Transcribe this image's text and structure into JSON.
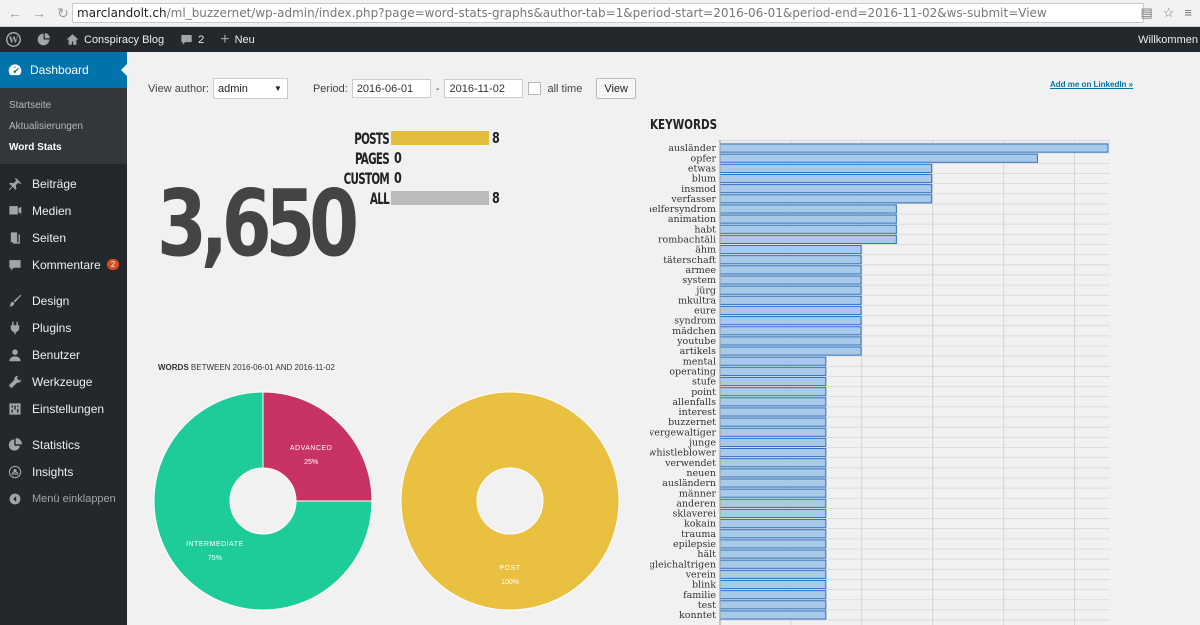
{
  "browser": {
    "url_host": "marclandolt.ch",
    "url_path": "/ml_buzzernet/wp-admin/index.php?page=word-stats-graphs&author-tab=1&period-start=2016-06-01&period-end=2016-11-02&ws-submit=View"
  },
  "adminbar": {
    "site_name": "Conspiracy Blog",
    "comments_count": "2",
    "new_label": "Neu",
    "howdy": "Willkommen"
  },
  "sidebar": {
    "dashboard": "Dashboard",
    "submenu": [
      "Startseite",
      "Aktualisierungen",
      "Word Stats"
    ],
    "items": [
      {
        "label": "Beiträge",
        "icon": "pin-icon"
      },
      {
        "label": "Medien",
        "icon": "media-icon"
      },
      {
        "label": "Seiten",
        "icon": "pages-icon"
      },
      {
        "label": "Kommentare",
        "icon": "comments-icon",
        "badge": "2"
      },
      {
        "label": "Design",
        "icon": "brush-icon"
      },
      {
        "label": "Plugins",
        "icon": "plugin-icon"
      },
      {
        "label": "Benutzer",
        "icon": "user-icon"
      },
      {
        "label": "Werkzeuge",
        "icon": "wrench-icon"
      },
      {
        "label": "Einstellungen",
        "icon": "settings-icon"
      },
      {
        "label": "Statistics",
        "icon": "chart-pie-icon"
      },
      {
        "label": "Insights",
        "icon": "insights-icon"
      }
    ],
    "collapse": "Menü einklappen"
  },
  "filter": {
    "author_label": "View author:",
    "author_value": "admin",
    "period_label": "Period:",
    "period_start": "2016-06-01",
    "period_sep": "-",
    "period_end": "2016-11-02",
    "all_time_label": "all time",
    "view_button": "View",
    "linkedin": "Add me on LinkedIn »"
  },
  "total_words": "3,650",
  "post_counts": [
    {
      "label": "POSTS",
      "value": "8",
      "fraction": 1.0,
      "color": "#e2bd3d"
    },
    {
      "label": "PAGES",
      "value": "0",
      "fraction": 0,
      "color": "#e2bd3d"
    },
    {
      "label": "CUSTOM",
      "value": "0",
      "fraction": 0,
      "color": "#e2bd3d"
    },
    {
      "label": "ALL",
      "value": "8",
      "fraction": 1.0,
      "color": "#bbbbbb"
    }
  ],
  "words_caption": {
    "bold": "WORDS",
    "rest": " BETWEEN 2016-06-01 AND 2016-11-02"
  },
  "keywords_title": "KEYWORDS",
  "chart_data": [
    {
      "type": "pie",
      "labels": [
        "ADVANCED",
        "INTERMEDIATE"
      ],
      "values": [
        25,
        75
      ],
      "value_labels": [
        "25%",
        "75%"
      ],
      "colors": [
        "#c93363",
        "#1ecc9a"
      ]
    },
    {
      "type": "pie",
      "labels": [
        "POST"
      ],
      "values": [
        100
      ],
      "value_labels": [
        "100%"
      ],
      "colors": [
        "#eac040"
      ]
    },
    {
      "type": "bar",
      "orientation": "horizontal",
      "title": "KEYWORDS",
      "categories": [
        "ausländer",
        "opfer",
        "etwas",
        "blum",
        "insmod",
        "verfasser",
        "helfersyndrom",
        "animation",
        "habt",
        "rombachtäli",
        "ähm",
        "täterschaft",
        "armee",
        "system",
        "jürg",
        "mkultra",
        "eure",
        "syndrom",
        "mädchen",
        "youtube",
        "artikels",
        "mental",
        "operating",
        "stufe",
        "point",
        "allenfalls",
        "interest",
        "buzzernet",
        "vergewaltiger",
        "junge",
        "whistleblower",
        "verwendet",
        "neuen",
        "ausländern",
        "männer",
        "anderen",
        "sklaverei",
        "kokain",
        "trauma",
        "epilepsie",
        "hält",
        "gleichaltrigen",
        "verein",
        "blink",
        "familie",
        "test",
        "konntet"
      ],
      "values": [
        11,
        9,
        6,
        6,
        6,
        6,
        5,
        5,
        5,
        5,
        4,
        4,
        4,
        4,
        4,
        4,
        4,
        4,
        4,
        4,
        4,
        3,
        3,
        3,
        3,
        3,
        3,
        3,
        3,
        3,
        3,
        3,
        3,
        3,
        3,
        3,
        3,
        3,
        3,
        3,
        3,
        3,
        3,
        3,
        3,
        3,
        3
      ],
      "xlim": [
        0,
        11
      ],
      "grid": true,
      "color": "#a8c9e8"
    }
  ]
}
